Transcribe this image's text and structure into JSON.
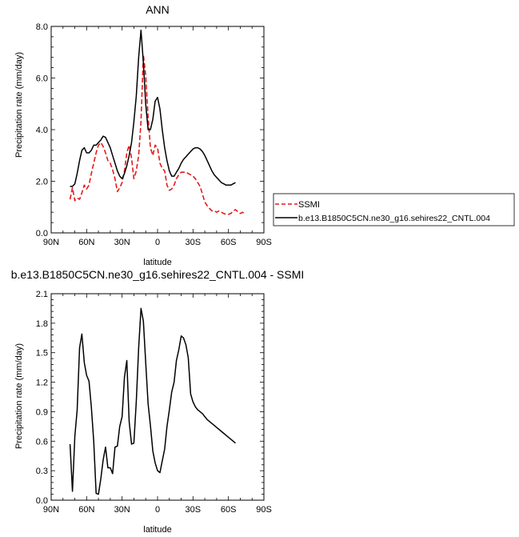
{
  "chart_data": [
    {
      "type": "line",
      "title": "ANN",
      "xlabel": "latitude",
      "ylabel": "Precipitation rate (mm/day)",
      "xlim": [
        90,
        -90
      ],
      "ylim": [
        0,
        8
      ],
      "x_ticks": [
        90,
        60,
        30,
        0,
        -30,
        -60,
        -90
      ],
      "x_tick_labels": [
        "90N",
        "60N",
        "30N",
        "0",
        "30S",
        "60S",
        "90S"
      ],
      "y_ticks": [
        0,
        2,
        4,
        6,
        8
      ],
      "y_tick_labels": [
        "0.0",
        "2.0",
        "4.0",
        "6.0",
        "8.0"
      ],
      "grid": false,
      "legend_position": "right",
      "series": [
        {
          "name": "SSMI",
          "color": "#e41a1c",
          "dash": "dashed",
          "x": [
            74,
            72,
            70,
            68,
            66,
            64,
            62,
            60,
            58,
            56,
            54,
            52,
            50,
            48,
            46,
            44,
            42,
            40,
            38,
            36,
            34,
            32,
            30,
            28,
            26,
            24,
            22,
            20,
            18,
            16,
            14,
            12,
            10,
            8,
            6,
            4,
            2,
            0,
            -2,
            -4,
            -6,
            -8,
            -10,
            -12,
            -14,
            -16,
            -18,
            -20,
            -22,
            -24,
            -26,
            -28,
            -30,
            -32,
            -34,
            -36,
            -38,
            -40,
            -42,
            -44,
            -46,
            -48,
            -50,
            -52,
            -54,
            -56,
            -58,
            -60,
            -62,
            -64,
            -66,
            -68,
            -70,
            -72,
            -74
          ],
          "values": [
            1.3,
            1.75,
            1.25,
            1.35,
            1.3,
            1.55,
            1.85,
            1.7,
            1.85,
            2.3,
            2.7,
            3.1,
            3.4,
            3.5,
            3.35,
            3.1,
            2.8,
            2.7,
            2.45,
            2.1,
            1.6,
            1.75,
            1.95,
            2.4,
            3.1,
            3.4,
            2.9,
            2.1,
            2.4,
            3.0,
            4.3,
            6.9,
            6.1,
            4.5,
            3.3,
            3.0,
            3.4,
            3.3,
            2.7,
            2.5,
            2.4,
            1.85,
            1.65,
            1.7,
            1.85,
            2.1,
            2.25,
            2.35,
            2.35,
            2.35,
            2.3,
            2.25,
            2.2,
            2.1,
            1.95,
            1.8,
            1.5,
            1.2,
            1.05,
            0.95,
            0.85,
            0.85,
            0.8,
            0.85,
            0.8,
            0.75,
            0.72,
            0.72,
            0.75,
            0.85,
            0.9,
            0.82,
            0.75,
            0.8,
            0.72
          ]
        },
        {
          "name": "b.e13.B1850C5CN.ne30_g16.sehires22_CNTL.004",
          "color": "#000000",
          "dash": "solid",
          "x": [
            74,
            72,
            70,
            68,
            66,
            64,
            62,
            60,
            58,
            56,
            54,
            52,
            50,
            48,
            46,
            44,
            42,
            40,
            38,
            36,
            34,
            32,
            30,
            28,
            26,
            24,
            22,
            20,
            18,
            16,
            14,
            12,
            10,
            8,
            6,
            4,
            2,
            0,
            -2,
            -4,
            -6,
            -8,
            -10,
            -12,
            -14,
            -16,
            -18,
            -20,
            -22,
            -24,
            -26,
            -28,
            -30,
            -32,
            -34,
            -36,
            -38,
            -40,
            -42,
            -44,
            -46,
            -48,
            -50,
            -52,
            -54,
            -56,
            -58,
            -60,
            -62,
            -64,
            -66
          ],
          "values": [
            1.8,
            1.8,
            1.9,
            2.3,
            2.8,
            3.2,
            3.3,
            3.1,
            3.1,
            3.2,
            3.4,
            3.4,
            3.5,
            3.6,
            3.75,
            3.7,
            3.5,
            3.3,
            3.0,
            2.7,
            2.4,
            2.2,
            2.1,
            2.3,
            2.6,
            3.0,
            3.5,
            4.3,
            5.3,
            6.8,
            7.85,
            6.6,
            5.0,
            4.0,
            4.0,
            4.4,
            5.1,
            5.25,
            4.8,
            4.0,
            3.3,
            2.8,
            2.4,
            2.2,
            2.2,
            2.35,
            2.5,
            2.7,
            2.85,
            2.95,
            3.05,
            3.15,
            3.25,
            3.3,
            3.3,
            3.25,
            3.15,
            3.0,
            2.8,
            2.6,
            2.4,
            2.25,
            2.15,
            2.05,
            1.95,
            1.9,
            1.85,
            1.85,
            1.85,
            1.9,
            1.95
          ]
        }
      ]
    },
    {
      "type": "line",
      "title": "b.e13.B1850C5CN.ne30_g16.sehires22_CNTL.004 - SSMI",
      "xlabel": "latitude",
      "ylabel": "Precipitation rate (mm/day)",
      "xlim": [
        90,
        -90
      ],
      "ylim": [
        0,
        2.1
      ],
      "x_ticks": [
        90,
        60,
        30,
        0,
        -30,
        -60,
        -90
      ],
      "x_tick_labels": [
        "90N",
        "60N",
        "30N",
        "0",
        "30S",
        "60S",
        "90S"
      ],
      "y_ticks": [
        0,
        0.3,
        0.6,
        0.9,
        1.2,
        1.5,
        1.8,
        2.1
      ],
      "y_tick_labels": [
        "0.0",
        "0.3",
        "0.6",
        "0.9",
        "1.2",
        "1.5",
        "1.8",
        "2.1"
      ],
      "grid": false,
      "series": [
        {
          "color": "#000000",
          "dash": "solid",
          "x": [
            74,
            72,
            70,
            68,
            66,
            64,
            62,
            60,
            58,
            56,
            54,
            52,
            50,
            48,
            46,
            44,
            42,
            40,
            38,
            36,
            34,
            32,
            30,
            28,
            26,
            24,
            22,
            20,
            18,
            16,
            14,
            12,
            10,
            8,
            6,
            4,
            2,
            0,
            -2,
            -4,
            -6,
            -8,
            -10,
            -12,
            -14,
            -16,
            -18,
            -20,
            -22,
            -24,
            -26,
            -28,
            -30,
            -32,
            -34,
            -36,
            -38,
            -40,
            -42,
            -44,
            -46,
            -48,
            -50,
            -52,
            -54,
            -56,
            -58,
            -60,
            -62,
            -64,
            -66
          ],
          "values": [
            0.57,
            0.09,
            0.65,
            0.92,
            1.55,
            1.69,
            1.4,
            1.27,
            1.21,
            0.95,
            0.6,
            0.07,
            0.06,
            0.22,
            0.41,
            0.54,
            0.33,
            0.33,
            0.27,
            0.54,
            0.55,
            0.75,
            0.85,
            1.25,
            1.42,
            0.8,
            0.57,
            0.58,
            1.0,
            1.55,
            1.95,
            1.82,
            1.4,
            0.98,
            0.76,
            0.5,
            0.38,
            0.3,
            0.28,
            0.4,
            0.52,
            0.75,
            0.92,
            1.1,
            1.2,
            1.42,
            1.53,
            1.67,
            1.65,
            1.58,
            1.45,
            1.08,
            1.0,
            0.95,
            0.92,
            0.9,
            0.88,
            0.85,
            0.82,
            0.8,
            0.78,
            0.76,
            0.74,
            0.72,
            0.7,
            0.68,
            0.66,
            0.64,
            0.62,
            0.6,
            0.58
          ]
        }
      ]
    }
  ]
}
